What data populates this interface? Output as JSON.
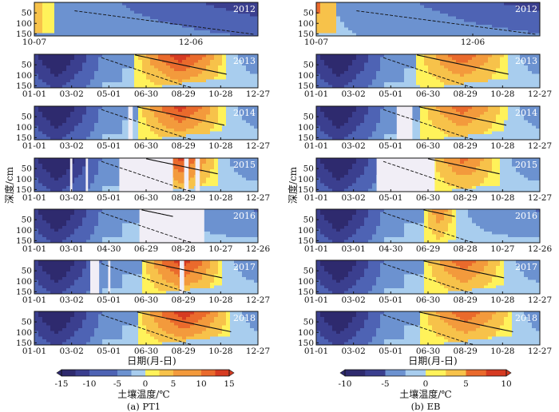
{
  "chart_data": [
    {
      "type": "heatmap",
      "panel": "a",
      "caption": "(a) PT1",
      "xlabel": "日期(月-日)",
      "ylabel": "深度/cm",
      "yticks": [
        "50",
        "100",
        "150"
      ],
      "colorbar": {
        "label": "土壤温度/℃",
        "ticks": [
          "-15",
          "-10",
          "-5",
          "0",
          "5",
          "10",
          "15"
        ],
        "range": [
          -15,
          15
        ]
      },
      "rows": [
        {
          "year": "2012",
          "x_ticks": [
            "10-07",
            "12-06"
          ],
          "gaps": []
        },
        {
          "year": "2013",
          "x_ticks": [
            "01-01",
            "03-02",
            "05-01",
            "06-30",
            "08-29",
            "10-28",
            "12-27"
          ],
          "gaps": []
        },
        {
          "year": "2014",
          "x_ticks": [
            "01-01",
            "03-02",
            "05-01",
            "06-30",
            "08-29",
            "10-28",
            "12-27"
          ],
          "gaps": []
        },
        {
          "year": "2015",
          "x_ticks": [
            "01-01",
            "03-02",
            "05-01",
            "06-30",
            "08-29",
            "10-28",
            "12-27"
          ],
          "gaps": []
        },
        {
          "year": "2016",
          "x_ticks": [
            "01-01",
            "03-01",
            "04-30",
            "06-29",
            "08-28",
            "10-27",
            "12-26"
          ],
          "gaps": []
        },
        {
          "year": "2017",
          "x_ticks": [
            "01-01",
            "03-02",
            "05-01",
            "06-30",
            "08-29",
            "10-28",
            "12-27"
          ],
          "gaps": []
        },
        {
          "year": "2018",
          "x_ticks": [
            "01-01",
            "03-02",
            "05-01",
            "06-30",
            "08-29",
            "10-28",
            "12-27"
          ],
          "gaps": []
        }
      ]
    },
    {
      "type": "heatmap",
      "panel": "b",
      "caption": "(b) EB",
      "xlabel": "日期(月-日)",
      "ylabel": "深度/cm",
      "yticks": [
        "50",
        "100",
        "150"
      ],
      "colorbar": {
        "label": "土壤温度/℃",
        "ticks": [
          "-10",
          "-5",
          "0",
          "5",
          "10"
        ],
        "range": [
          -10,
          10
        ]
      },
      "rows": [
        {
          "year": "2012",
          "x_ticks": [
            "10-07",
            "12-06"
          ],
          "gaps": []
        },
        {
          "year": "2013",
          "x_ticks": [
            "01-01",
            "03-02",
            "05-01",
            "06-30",
            "08-29",
            "10-28",
            "12-27"
          ],
          "gaps": []
        },
        {
          "year": "2014",
          "x_ticks": [
            "01-01",
            "03-02",
            "05-01",
            "06-30",
            "08-29",
            "10-28",
            "12-27"
          ],
          "gaps": []
        },
        {
          "year": "2015",
          "x_ticks": [
            "01-01",
            "03-02",
            "05-01",
            "06-30",
            "08-29",
            "10-28",
            "12-27"
          ],
          "gaps": []
        },
        {
          "year": "2016",
          "x_ticks": [
            "01-01",
            "03-01",
            "04-30",
            "06-29",
            "08-28",
            "10-27",
            "12-26"
          ],
          "gaps": []
        },
        {
          "year": "2017",
          "x_ticks": [
            "01-01",
            "03-02",
            "05-01",
            "06-30",
            "08-29",
            "10-28",
            "12-27"
          ],
          "gaps": []
        },
        {
          "year": "2018",
          "x_ticks": [
            "01-01",
            "03-02",
            "05-01",
            "06-30",
            "08-29",
            "10-28",
            "12-27"
          ],
          "gaps": []
        }
      ]
    }
  ],
  "colors": {
    "level_-15": "#2e2a6e",
    "level_-12": "#3b3f8f",
    "level_-9": "#4e63b4",
    "level_-6": "#6c92d0",
    "level_-3": "#a8cdee",
    "level_0": "#fff25a",
    "level_3": "#f7c24a",
    "level_6": "#f39a3c",
    "level_9": "#ea6a2c",
    "level_12": "#d63b22",
    "gap": "#f1eef6",
    "contour": "#111111"
  }
}
